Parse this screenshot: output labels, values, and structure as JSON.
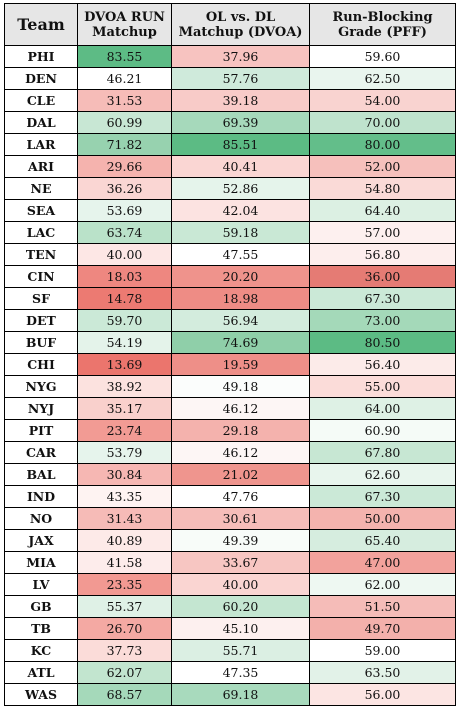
{
  "headers": [
    "Team",
    "DVOA RUN Matchup",
    "OL vs. DL Matchup (DVOA)",
    "Run-Blocking Grade (PFF)"
  ],
  "rows": [
    {
      "team": "PHI",
      "dvoa": "83.55",
      "c1": "#5dbb85",
      "ol": "37.96",
      "c2": "#f7c3c0",
      "pff": "59.60",
      "c3": "#ffffff"
    },
    {
      "team": "DEN",
      "dvoa": "46.21",
      "c1": "#ffffff",
      "ol": "57.76",
      "c2": "#cfeadb",
      "pff": "62.50",
      "c3": "#e9f5ee"
    },
    {
      "team": "CLE",
      "dvoa": "31.53",
      "c1": "#f6bcb8",
      "ol": "39.18",
      "c2": "#f8cbc8",
      "pff": "54.00",
      "c3": "#f9d3d0"
    },
    {
      "team": "DAL",
      "dvoa": "60.99",
      "c1": "#c8e7d4",
      "ol": "69.39",
      "c2": "#a6d9bb",
      "pff": "70.00",
      "c3": "#bfe3cd"
    },
    {
      "team": "LAR",
      "dvoa": "71.82",
      "c1": "#97d2af",
      "ol": "85.51",
      "c2": "#5cbb84",
      "pff": "80.00",
      "c3": "#63be8a"
    },
    {
      "team": "ARI",
      "dvoa": "29.66",
      "c1": "#f5b3ae",
      "ol": "40.41",
      "c2": "#fad6d3",
      "pff": "52.00",
      "c3": "#f6c0bc"
    },
    {
      "team": "NE",
      "dvoa": "36.26",
      "c1": "#fad6d3",
      "ol": "52.86",
      "c2": "#e5f4eb",
      "pff": "54.80",
      "c3": "#fadad7"
    },
    {
      "team": "SEA",
      "dvoa": "53.69",
      "c1": "#e6f4ec",
      "ol": "42.04",
      "c2": "#fce3e1",
      "pff": "64.40",
      "c3": "#dcf0e3"
    },
    {
      "team": "LAC",
      "dvoa": "63.74",
      "c1": "#bae2c9",
      "ol": "59.18",
      "c2": "#c9e8d5",
      "pff": "57.00",
      "c3": "#fdf0ef"
    },
    {
      "team": "TEN",
      "dvoa": "40.00",
      "c1": "#fde7e5",
      "ol": "47.55",
      "c2": "#ffffff",
      "pff": "56.80",
      "c3": "#fdeeed"
    },
    {
      "team": "CIN",
      "dvoa": "18.03",
      "c1": "#ee8780",
      "ol": "20.20",
      "c2": "#ef938c",
      "pff": "36.00",
      "c3": "#e57b74"
    },
    {
      "team": "SF",
      "dvoa": "14.78",
      "c1": "#ec7a72",
      "ol": "18.98",
      "c2": "#ee8c85",
      "pff": "67.30",
      "c3": "#cbe9d7"
    },
    {
      "team": "DET",
      "dvoa": "59.70",
      "c1": "#cbe9d7",
      "ol": "56.94",
      "c2": "#d3ecdd",
      "pff": "73.00",
      "c3": "#a4d9b9"
    },
    {
      "team": "BUF",
      "dvoa": "54.19",
      "c1": "#e4f3ea",
      "ol": "74.69",
      "c2": "#8fcfa9",
      "pff": "80.50",
      "c3": "#5cbb84"
    },
    {
      "team": "CHI",
      "dvoa": "13.69",
      "c1": "#eb756d",
      "ol": "19.59",
      "c2": "#ee8f88",
      "pff": "56.40",
      "c3": "#fcebe9"
    },
    {
      "team": "NYG",
      "dvoa": "38.92",
      "c1": "#fce2df",
      "ol": "49.18",
      "c2": "#fbfdfc",
      "pff": "55.00",
      "c3": "#fbdcd9"
    },
    {
      "team": "NYJ",
      "dvoa": "35.17",
      "c1": "#f9d0cc",
      "ol": "46.12",
      "c2": "#fdf6f5",
      "pff": "64.00",
      "c3": "#def1e5"
    },
    {
      "team": "PIT",
      "dvoa": "23.74",
      "c1": "#f29b94",
      "ol": "29.18",
      "c2": "#f4b2ad",
      "pff": "60.90",
      "c3": "#f5fbf7"
    },
    {
      "team": "CAR",
      "dvoa": "53.79",
      "c1": "#e6f4ec",
      "ol": "46.12",
      "c2": "#fdf6f5",
      "pff": "67.80",
      "c3": "#c7e7d3"
    },
    {
      "team": "BAL",
      "dvoa": "30.84",
      "c1": "#f6b7b3",
      "ol": "21.02",
      "c2": "#ef958e",
      "pff": "62.60",
      "c3": "#e8f5ed"
    },
    {
      "team": "IND",
      "dvoa": "43.35",
      "c1": "#fef3f2",
      "ol": "47.76",
      "c2": "#ffffff",
      "pff": "67.30",
      "c3": "#cbe9d7"
    },
    {
      "team": "NO",
      "dvoa": "31.43",
      "c1": "#f6bbb7",
      "ol": "30.61",
      "c2": "#f6bdb9",
      "pff": "50.00",
      "c3": "#f4b3ae"
    },
    {
      "team": "JAX",
      "dvoa": "40.89",
      "c1": "#fdeae8",
      "ol": "49.39",
      "c2": "#f8fcf9",
      "pff": "65.40",
      "c3": "#d6eddf"
    },
    {
      "team": "MIA",
      "dvoa": "41.58",
      "c1": "#fdeceb",
      "ol": "33.67",
      "c2": "#f7c6c2",
      "pff": "47.00",
      "c3": "#f2a29c"
    },
    {
      "team": "LV",
      "dvoa": "23.35",
      "c1": "#f29992",
      "ol": "40.00",
      "c2": "#fad5d2",
      "pff": "62.00",
      "c3": "#eef8f2"
    },
    {
      "team": "GB",
      "dvoa": "55.37",
      "c1": "#dff1e6",
      "ol": "60.20",
      "c2": "#c4e6d1",
      "pff": "51.50",
      "c3": "#f5bcb8"
    },
    {
      "team": "TB",
      "dvoa": "26.70",
      "c1": "#f4a9a3",
      "ol": "45.10",
      "c2": "#fdf0ef",
      "pff": "49.70",
      "c3": "#f3b0ab"
    },
    {
      "team": "KC",
      "dvoa": "37.73",
      "c1": "#fbdcd9",
      "ol": "55.71",
      "c2": "#dbefe3",
      "pff": "59.00",
      "c3": "#ffffff"
    },
    {
      "team": "ATL",
      "dvoa": "62.07",
      "c1": "#c2e5cf",
      "ol": "47.35",
      "c2": "#ffffff",
      "pff": "63.50",
      "c3": "#e2f2e8"
    },
    {
      "team": "WAS",
      "dvoa": "68.57",
      "c1": "#a5d9ba",
      "ol": "69.18",
      "c2": "#a8dabd",
      "pff": "56.00",
      "c3": "#fce5e3"
    }
  ]
}
